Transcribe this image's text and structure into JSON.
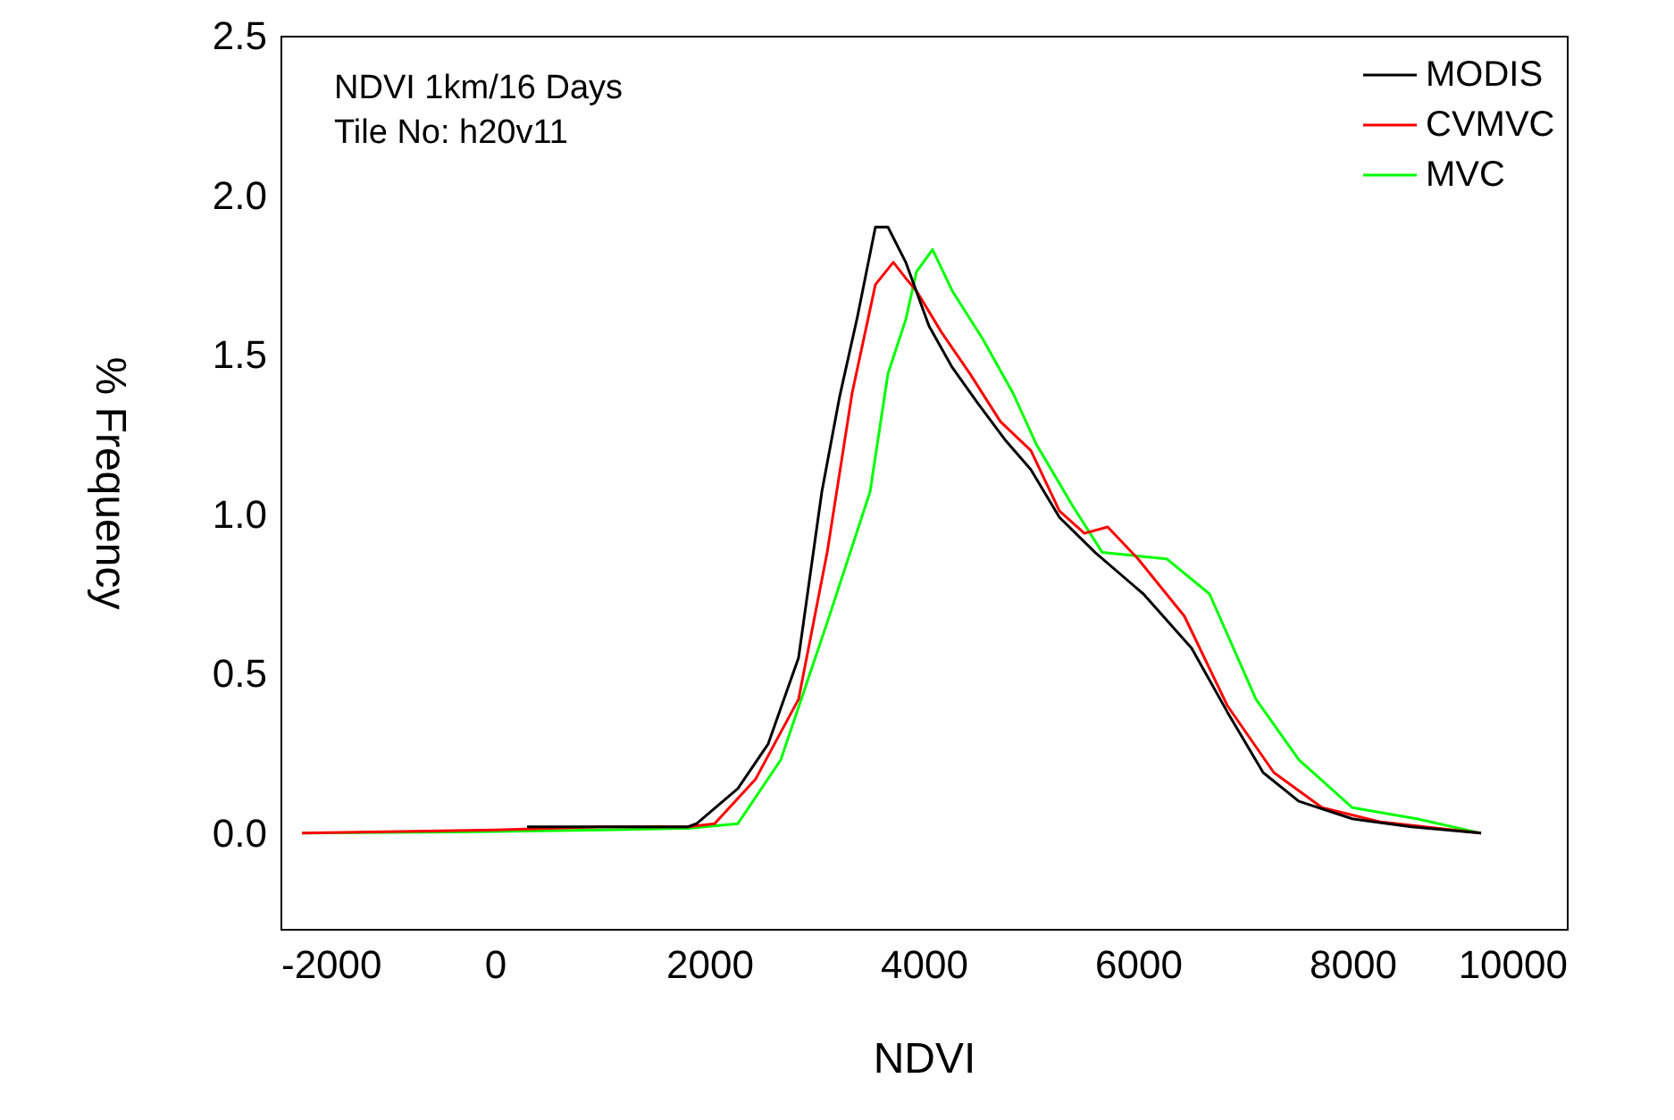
{
  "chart_data": {
    "type": "line",
    "xlabel": "NDVI",
    "ylabel": "% Frequency",
    "annotations": [
      "NDVI 1km/16 Days",
      "Tile No: h20v11"
    ],
    "xlim": [
      -2000,
      10000
    ],
    "xticks": [
      -2000,
      0,
      2000,
      4000,
      6000,
      8000,
      10000
    ],
    "ylim": [
      -0.3,
      2.5
    ],
    "yticks": [
      {
        "value": 0,
        "label": "0.0"
      },
      {
        "value": 0.5,
        "label": "0.5"
      },
      {
        "value": 1,
        "label": "1.0"
      },
      {
        "value": 1.5,
        "label": "1.5"
      },
      {
        "value": 2,
        "label": "2.0"
      },
      2.5
    ],
    "grid": false,
    "legend": "top right",
    "line_style": "solid",
    "marker": "none",
    "series": [
      {
        "name": "MODIS",
        "color": "#000000",
        "x": [
          300,
          1000,
          1800,
          1883,
          2267,
          2550,
          2833,
          3050,
          3217,
          3383,
          3550,
          3667,
          3833,
          4050,
          4267,
          4500,
          4767,
          5000,
          5267,
          5600,
          6050,
          6500,
          6833,
          7167,
          7500,
          8000,
          8550,
          9200
        ],
        "values": [
          0.02,
          0.02,
          0.02,
          0.03,
          0.14,
          0.28,
          0.55,
          1.07,
          1.37,
          1.62,
          1.9,
          1.9,
          1.79,
          1.59,
          1.46,
          1.35,
          1.23,
          1.14,
          0.99,
          0.88,
          0.75,
          0.58,
          0.38,
          0.19,
          0.1,
          0.045,
          0.02,
          0
        ]
      },
      {
        "name": "CVMVC",
        "color": "#ff0000",
        "x": [
          -1800,
          0,
          1000,
          1800,
          2050,
          2433,
          2833,
          3100,
          3333,
          3550,
          3717,
          3833,
          3933,
          4167,
          4433,
          4717,
          5000,
          5267,
          5500,
          5717,
          6000,
          6433,
          6833,
          7267,
          7717,
          8267,
          9200
        ],
        "values": [
          0,
          0.01,
          0.02,
          0.02,
          0.03,
          0.17,
          0.42,
          0.88,
          1.38,
          1.72,
          1.79,
          1.74,
          1.7,
          1.57,
          1.44,
          1.29,
          1.2,
          1.01,
          0.94,
          0.96,
          0.86,
          0.68,
          0.4,
          0.19,
          0.08,
          0.035,
          0
        ]
      },
      {
        "name": "MVC",
        "color": "#00ff00",
        "x": [
          -1800,
          0,
          1000,
          1800,
          2267,
          2667,
          3100,
          3500,
          3667,
          3833,
          3933,
          4083,
          4267,
          4550,
          4833,
          5050,
          5383,
          5667,
          6267,
          6667,
          7100,
          7500,
          8000,
          8600,
          9200
        ],
        "values": [
          0,
          0.005,
          0.01,
          0.015,
          0.03,
          0.23,
          0.66,
          1.07,
          1.44,
          1.61,
          1.76,
          1.83,
          1.7,
          1.55,
          1.38,
          1.22,
          1.03,
          0.88,
          0.86,
          0.75,
          0.42,
          0.23,
          0.08,
          0.045,
          0
        ]
      }
    ]
  }
}
